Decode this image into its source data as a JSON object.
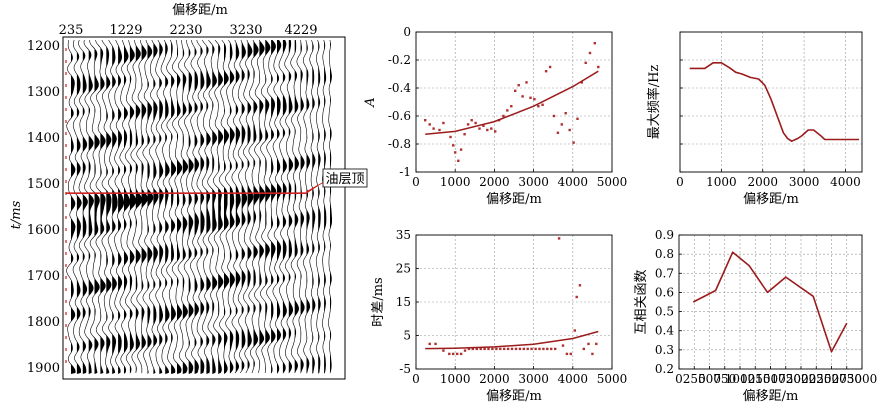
{
  "figure": {
    "seismic": {
      "xlabel": "偏移距/m",
      "ylabel": "t/ms",
      "x_ticks": [
        "235",
        "1229",
        "2230",
        "3230",
        "4229"
      ],
      "y_ticks": [
        "1200",
        "1300",
        "1400",
        "1500",
        "1600",
        "1700",
        "1800",
        "1900"
      ],
      "annotation": "油层顶",
      "horizon_time_ms": 1520,
      "colors": {
        "wiggle": "#000000",
        "horizon": "#cc2222"
      }
    }
  },
  "chart_data": [
    {
      "id": "amplitude",
      "type": "scatter",
      "xlabel": "偏移距/m",
      "ylabel": "A",
      "xlim": [
        0,
        5000
      ],
      "ylim": [
        -1.0,
        0
      ],
      "xticks": [
        0,
        1000,
        2000,
        3000,
        4000,
        5000
      ],
      "yticks": [
        -1.0,
        -0.8,
        -0.6,
        -0.4,
        -0.2,
        0
      ],
      "grid": true,
      "x": [
        235,
        350,
        450,
        600,
        700,
        880,
        950,
        1000,
        1080,
        1150,
        1240,
        1330,
        1420,
        1520,
        1620,
        1720,
        1820,
        1920,
        2020,
        2120,
        2230,
        2330,
        2430,
        2530,
        2620,
        2720,
        2820,
        2920,
        3020,
        3120,
        3230,
        3320,
        3420,
        3520,
        3620,
        3720,
        3820,
        3920,
        4020,
        4120,
        4229,
        4330,
        4440,
        4560,
        4650
      ],
      "y": [
        -0.63,
        -0.66,
        -0.69,
        -0.7,
        -0.65,
        -0.75,
        -0.81,
        -0.86,
        -0.92,
        -0.84,
        -0.73,
        -0.66,
        -0.63,
        -0.65,
        -0.69,
        -0.67,
        -0.7,
        -0.69,
        -0.71,
        -0.63,
        -0.6,
        -0.56,
        -0.53,
        -0.42,
        -0.38,
        -0.46,
        -0.36,
        -0.47,
        -0.48,
        -0.53,
        -0.52,
        -0.28,
        -0.25,
        -0.6,
        -0.72,
        -0.66,
        -0.58,
        -0.7,
        -0.79,
        -0.62,
        -0.36,
        -0.22,
        -0.15,
        -0.08,
        -0.25
      ],
      "trend": {
        "x": [
          235,
          1000,
          2000,
          3000,
          4000,
          4650
        ],
        "y": [
          -0.73,
          -0.71,
          -0.64,
          -0.53,
          -0.39,
          -0.28
        ]
      },
      "colors": {
        "points": "#b03030",
        "trend": "#9b1c1c"
      }
    },
    {
      "id": "max_frequency",
      "type": "line",
      "xlabel": "偏移距/m",
      "ylabel": "最大频率/Hz",
      "xlim": [
        0,
        4400
      ],
      "ylim": [
        5,
        30
      ],
      "xticks": [
        0,
        1000,
        2000,
        3000,
        4000
      ],
      "grid": true,
      "x": [
        235,
        600,
        800,
        1000,
        1200,
        1350,
        1500,
        1700,
        1900,
        2050,
        2200,
        2350,
        2500,
        2600,
        2700,
        2850,
        2950,
        3100,
        3230,
        3400,
        3500,
        3700,
        4000,
        4330
      ],
      "y": [
        23.5,
        23.5,
        24.5,
        24.5,
        23.6,
        22.8,
        22.5,
        21.9,
        21.6,
        20.5,
        18.0,
        15.0,
        12.0,
        11.0,
        10.5,
        11.0,
        11.5,
        12.5,
        12.5,
        11.5,
        10.8,
        10.8,
        10.8,
        10.8
      ],
      "colors": {
        "line": "#9b1c1c"
      }
    },
    {
      "id": "time_shift",
      "type": "scatter",
      "xlabel": "偏移距/m",
      "ylabel": "时差/ms",
      "xlim": [
        0,
        5000
      ],
      "ylim": [
        -5,
        35
      ],
      "xticks": [
        0,
        1000,
        2000,
        3000,
        4000,
        5000
      ],
      "yticks": [
        -5,
        5,
        15,
        25,
        35
      ],
      "grid": true,
      "x": [
        350,
        500,
        700,
        850,
        950,
        1050,
        1150,
        1250,
        1350,
        1450,
        1550,
        1650,
        1750,
        1850,
        1950,
        2050,
        2150,
        2250,
        2350,
        2450,
        2550,
        2650,
        2750,
        2850,
        2950,
        3050,
        3150,
        3250,
        3350,
        3450,
        3550,
        3650,
        3750,
        3850,
        3950,
        4050,
        4100,
        4180,
        4280,
        4400,
        4500,
        4600
      ],
      "y": [
        2.5,
        2.5,
        0.5,
        -0.5,
        -0.5,
        -0.5,
        -0.5,
        0.5,
        1.0,
        1.0,
        1.0,
        1.0,
        1.0,
        1.0,
        1.0,
        1.0,
        1.0,
        1.0,
        1.0,
        1.0,
        1.0,
        1.0,
        1.0,
        1.0,
        1.0,
        1.0,
        1.0,
        1.0,
        1.0,
        1.0,
        1.0,
        34.0,
        2.0,
        -0.5,
        -0.5,
        6.5,
        16.5,
        20.0,
        1.0,
        2.5,
        -0.5,
        2.5
      ],
      "trend": {
        "x": [
          235,
          1000,
          2000,
          3000,
          4000,
          4650
        ],
        "y": [
          1.1,
          1.2,
          1.6,
          2.4,
          4.1,
          6.2
        ]
      },
      "colors": {
        "points": "#b03030",
        "trend": "#9b1c1c"
      }
    },
    {
      "id": "cross_correlation",
      "type": "line",
      "xlabel": "偏移距/m",
      "ylabel": "互相关函数",
      "xlim": [
        0,
        3000
      ],
      "ylim": [
        0.2,
        0.9
      ],
      "xticks": [
        0,
        250,
        500,
        750,
        1000,
        1250,
        1500,
        1750,
        2000,
        2250,
        2500,
        2750,
        3000
      ],
      "yticks": [
        0.2,
        0.3,
        0.4,
        0.5,
        0.6,
        0.7,
        0.8,
        0.9
      ],
      "grid": true,
      "x": [
        235,
        600,
        880,
        1150,
        1450,
        1750,
        2200,
        2500,
        2750
      ],
      "y": [
        0.55,
        0.61,
        0.81,
        0.74,
        0.6,
        0.68,
        0.58,
        0.29,
        0.44
      ],
      "colors": {
        "line": "#9b1c1c"
      }
    }
  ]
}
